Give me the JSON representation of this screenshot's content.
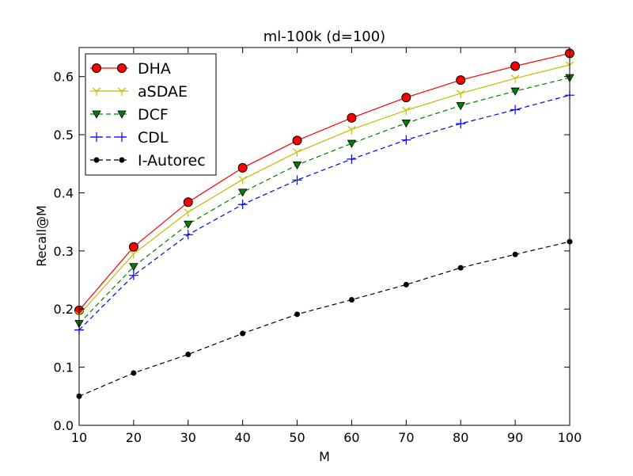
{
  "chart_data": {
    "type": "line",
    "title": "ml-100k (d=100)",
    "xlabel": "M",
    "ylabel": "Recall@M",
    "xlim": [
      10,
      100
    ],
    "ylim": [
      0.0,
      0.65
    ],
    "xticks": [
      "10",
      "20",
      "30",
      "40",
      "50",
      "60",
      "70",
      "80",
      "90",
      "100"
    ],
    "yticks": [
      "0.0",
      "0.1",
      "0.2",
      "0.3",
      "0.4",
      "0.5",
      "0.6"
    ],
    "grid": false,
    "legend_position": "top-left",
    "x": [
      10,
      20,
      30,
      40,
      50,
      60,
      70,
      80,
      90,
      100
    ],
    "series": [
      {
        "name": "DHA",
        "color": "#ff0000",
        "marker": "circle",
        "linestyle": "solid",
        "values": [
          0.198,
          0.307,
          0.384,
          0.443,
          0.49,
          0.529,
          0.564,
          0.594,
          0.618,
          0.64
        ]
      },
      {
        "name": "aSDAE",
        "color": "#bfbf00",
        "marker": "tri_down",
        "linestyle": "solid",
        "values": [
          0.19,
          0.295,
          0.367,
          0.423,
          0.47,
          0.509,
          0.542,
          0.571,
          0.597,
          0.62
        ]
      },
      {
        "name": "DCF",
        "color": "#008000",
        "marker": "triangle_down",
        "linestyle": "dashed",
        "values": [
          0.175,
          0.273,
          0.346,
          0.401,
          0.448,
          0.485,
          0.52,
          0.55,
          0.575,
          0.598
        ]
      },
      {
        "name": "CDL",
        "color": "#0000ff",
        "marker": "plus",
        "linestyle": "dashed",
        "values": [
          0.164,
          0.258,
          0.328,
          0.38,
          0.422,
          0.458,
          0.491,
          0.519,
          0.543,
          0.568
        ]
      },
      {
        "name": "I-Autorec",
        "color": "#000000",
        "marker": "dot",
        "linestyle": "dashed",
        "values": [
          0.05,
          0.09,
          0.122,
          0.158,
          0.191,
          0.216,
          0.242,
          0.271,
          0.294,
          0.316
        ]
      }
    ]
  }
}
